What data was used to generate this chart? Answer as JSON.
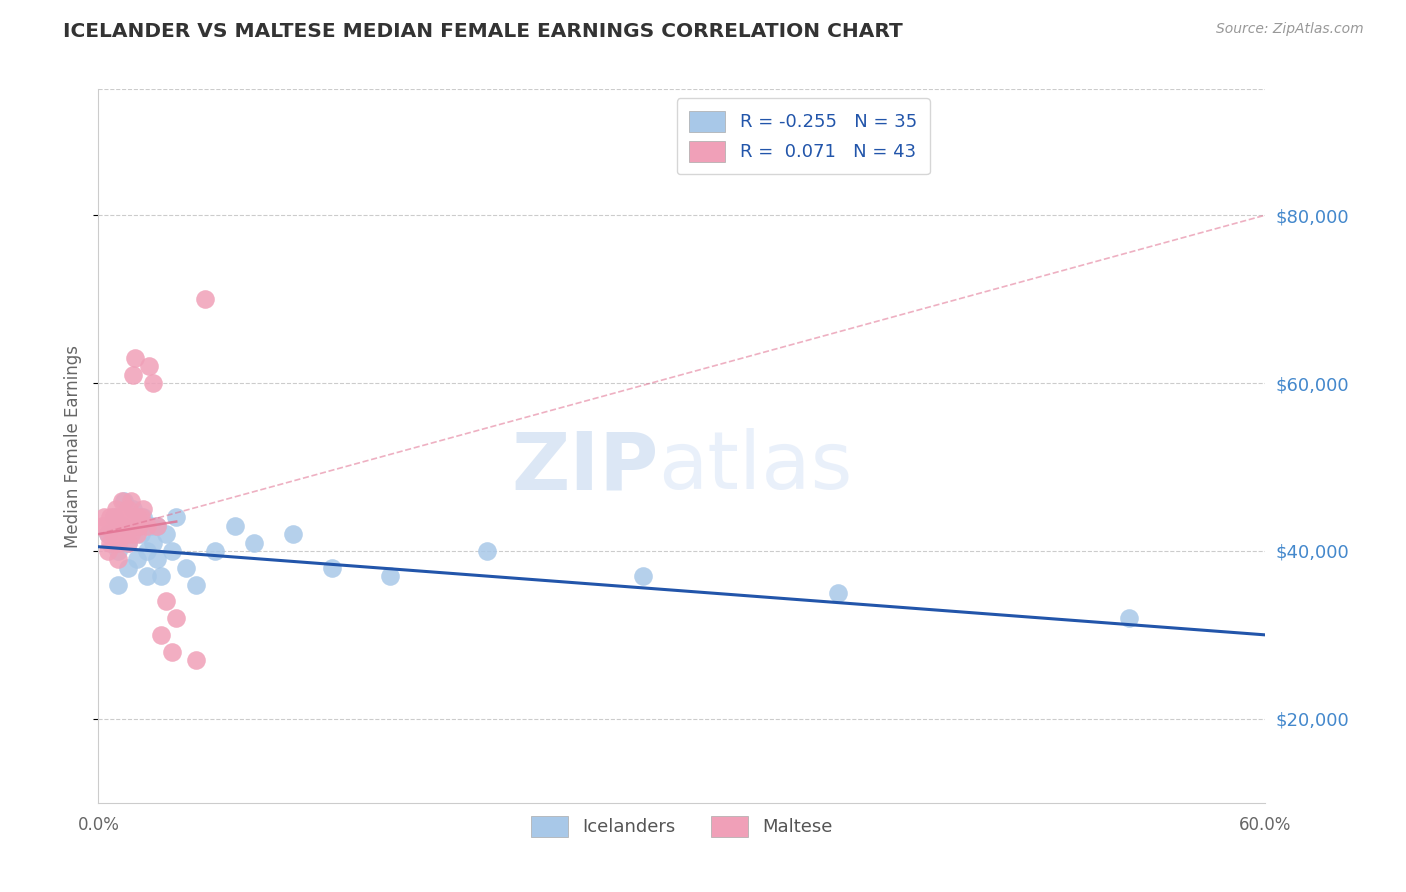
{
  "title": "ICELANDER VS MALTESE MEDIAN FEMALE EARNINGS CORRELATION CHART",
  "source": "Source: ZipAtlas.com",
  "ylabel": "Median Female Earnings",
  "xlim": [
    0.0,
    0.6
  ],
  "ylim": [
    10000,
    95000
  ],
  "yticks": [
    20000,
    40000,
    60000,
    80000
  ],
  "xticks": [
    0.0,
    0.6
  ],
  "xtick_labels": [
    "0.0%",
    "60.0%"
  ],
  "ytick_labels": [
    "$20,000",
    "$40,000",
    "$60,000",
    "$80,000"
  ],
  "background_color": "#ffffff",
  "grid_color": "#cccccc",
  "watermark_text": "ZIPatlas",
  "icelanders": {
    "label": "Icelanders",
    "R": -0.255,
    "N": 35,
    "color": "#a8c8e8",
    "line_color": "#2255aa",
    "x": [
      0.005,
      0.008,
      0.01,
      0.01,
      0.012,
      0.013,
      0.015,
      0.015,
      0.018,
      0.02,
      0.02,
      0.022,
      0.023,
      0.025,
      0.025,
      0.027,
      0.028,
      0.03,
      0.03,
      0.032,
      0.035,
      0.038,
      0.04,
      0.045,
      0.05,
      0.06,
      0.07,
      0.08,
      0.1,
      0.12,
      0.15,
      0.2,
      0.28,
      0.38,
      0.53
    ],
    "y": [
      42000,
      44000,
      40000,
      36000,
      43000,
      46000,
      41000,
      38000,
      45000,
      43000,
      39000,
      42000,
      44000,
      40000,
      37000,
      43000,
      41000,
      39000,
      43000,
      37000,
      42000,
      40000,
      44000,
      38000,
      36000,
      40000,
      43000,
      41000,
      42000,
      38000,
      37000,
      40000,
      37000,
      35000,
      32000
    ]
  },
  "maltese": {
    "label": "Maltese",
    "R": 0.071,
    "N": 43,
    "color": "#f0a0b8",
    "line_color": "#e07090",
    "x": [
      0.002,
      0.003,
      0.004,
      0.005,
      0.005,
      0.006,
      0.006,
      0.007,
      0.008,
      0.008,
      0.009,
      0.01,
      0.01,
      0.01,
      0.011,
      0.012,
      0.012,
      0.013,
      0.013,
      0.014,
      0.015,
      0.015,
      0.015,
      0.016,
      0.017,
      0.017,
      0.018,
      0.019,
      0.02,
      0.02,
      0.021,
      0.022,
      0.023,
      0.025,
      0.026,
      0.028,
      0.03,
      0.032,
      0.035,
      0.038,
      0.04,
      0.05,
      0.055
    ],
    "y": [
      43000,
      44000,
      43000,
      42000,
      40000,
      44000,
      41000,
      43000,
      44000,
      42000,
      45000,
      43000,
      41000,
      39000,
      44000,
      42000,
      46000,
      43000,
      44000,
      42000,
      45000,
      43000,
      41000,
      44000,
      42000,
      46000,
      61000,
      63000,
      44000,
      42000,
      43000,
      44000,
      45000,
      43000,
      62000,
      60000,
      43000,
      30000,
      34000,
      28000,
      32000,
      27000,
      70000
    ]
  }
}
